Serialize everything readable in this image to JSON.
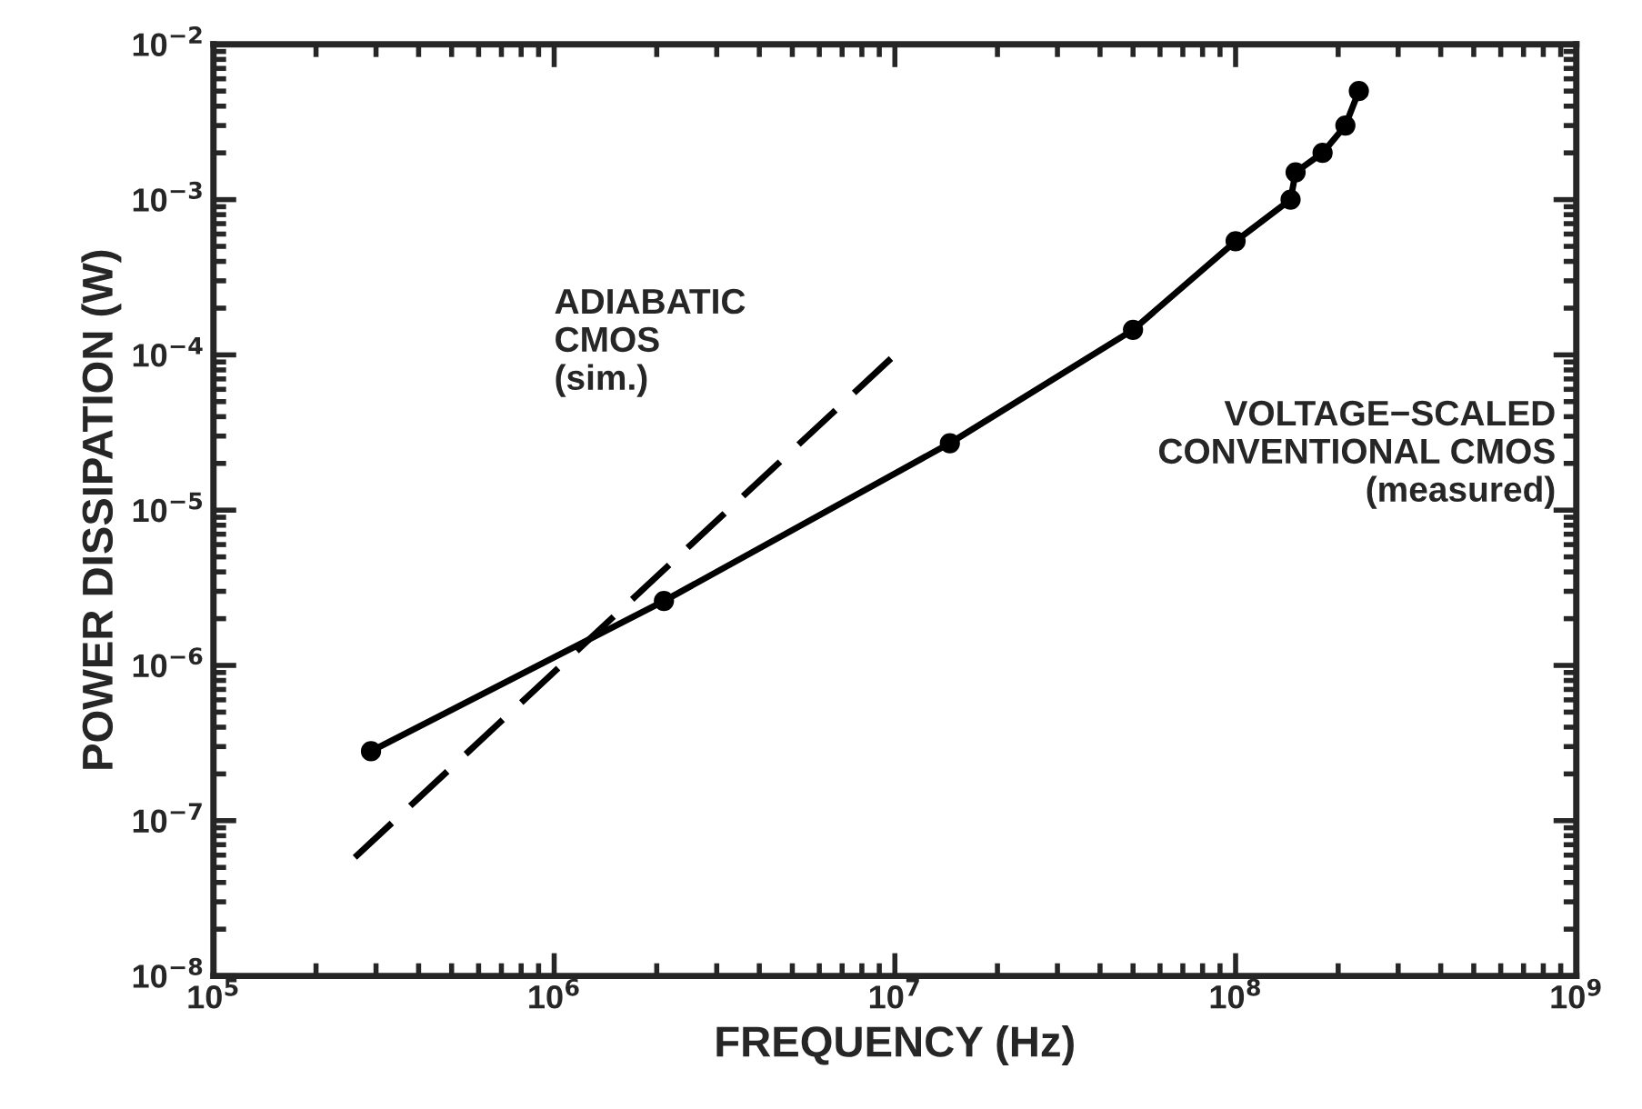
{
  "chart_data": {
    "type": "line",
    "xlabel": "FREQUENCY (Hz)",
    "ylabel": "POWER DISSIPATION (W)",
    "log": "xy",
    "grid": false,
    "xlim": [
      100000,
      1000000000
    ],
    "ylim": [
      1e-08,
      0.01
    ],
    "xticks": [
      {
        "value": 100000,
        "label": "10$^{5}$"
      },
      {
        "value": 1000000,
        "label": "10$^{6}$"
      },
      {
        "value": 10000000,
        "label": "10$^{7}$"
      },
      {
        "value": 100000000,
        "label": "10$^{8}$"
      },
      {
        "value": 1000000000,
        "label": "10$^{9}$"
      }
    ],
    "yticks": [
      {
        "value": 1e-08,
        "label": "10$^{−8}$"
      },
      {
        "value": 1e-07,
        "label": "10$^{−7}$"
      },
      {
        "value": 1e-06,
        "label": "10$^{−6}$"
      },
      {
        "value": 1e-05,
        "label": "10$^{−5}$"
      },
      {
        "value": 0.0001,
        "label": "10$^{−4}$"
      },
      {
        "value": 0.001,
        "label": "10$^{−3}$"
      },
      {
        "value": 0.01,
        "label": "10$^{−2}$"
      }
    ],
    "series": [
      {
        "color": "#000000",
        "marker": "circle",
        "line_style": "solid",
        "x": [
          290000,
          2100000,
          14500000,
          50000000,
          100000000,
          145000000,
          150000000,
          180000000,
          210000000,
          230000000
        ],
        "values": [
          2.8e-07,
          2.6e-06,
          2.7e-05,
          0.000145,
          0.00054,
          0.001,
          0.0015,
          0.002,
          0.003,
          0.005
        ]
      },
      {
        "color": "#000000",
        "marker": "none",
        "line_style": "dashed",
        "x": [
          260000,
          10000000
        ],
        "values": [
          5.8e-08,
          0.0001
        ]
      }
    ],
    "annotations": [
      "ADIABATIC\nCMOS\n(sim.)",
      "VOLTAGE−SCALED\nCONVENTIONAL CMOS\n(measured)"
    ]
  }
}
